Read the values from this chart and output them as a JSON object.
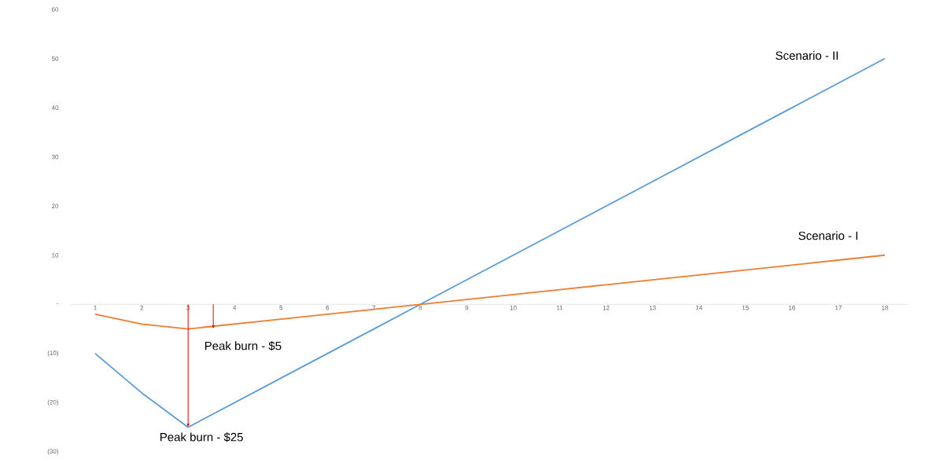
{
  "chart_data": {
    "type": "line",
    "categories": [
      "1",
      "2",
      "3",
      "4",
      "5",
      "6",
      "7",
      "8",
      "9",
      "10",
      "11",
      "12",
      "13",
      "14",
      "15",
      "16",
      "17",
      "18"
    ],
    "series": [
      {
        "name": "Scenario - II",
        "color": "#5b9bd5",
        "values": [
          -10,
          -18,
          -25,
          -20,
          -15,
          -10,
          -5,
          0,
          5,
          10,
          15,
          20,
          25,
          30,
          35,
          40,
          45,
          50
        ]
      },
      {
        "name": "Scenario - I",
        "color": "#ed7d31",
        "values": [
          -2,
          -4,
          -5,
          -4,
          -3,
          -2,
          -1,
          0,
          1,
          2,
          3,
          4,
          5,
          6,
          7,
          8,
          9,
          10
        ]
      }
    ],
    "ylim": [
      -30,
      60
    ],
    "yticks": [
      {
        "value": -30,
        "label": "(30)"
      },
      {
        "value": -20,
        "label": "(20)"
      },
      {
        "value": -10,
        "label": "(10)"
      },
      {
        "value": 0,
        "label": "-"
      },
      10,
      20,
      30,
      40,
      50,
      60
    ],
    "annotations": [
      {
        "text": "Peak burn - $25",
        "x": "3",
        "y": -25
      },
      {
        "text": "Peak burn - $5",
        "x": "3",
        "y": -5
      }
    ],
    "grid": false,
    "legend": false,
    "marker": "none",
    "line_style": "solid"
  }
}
